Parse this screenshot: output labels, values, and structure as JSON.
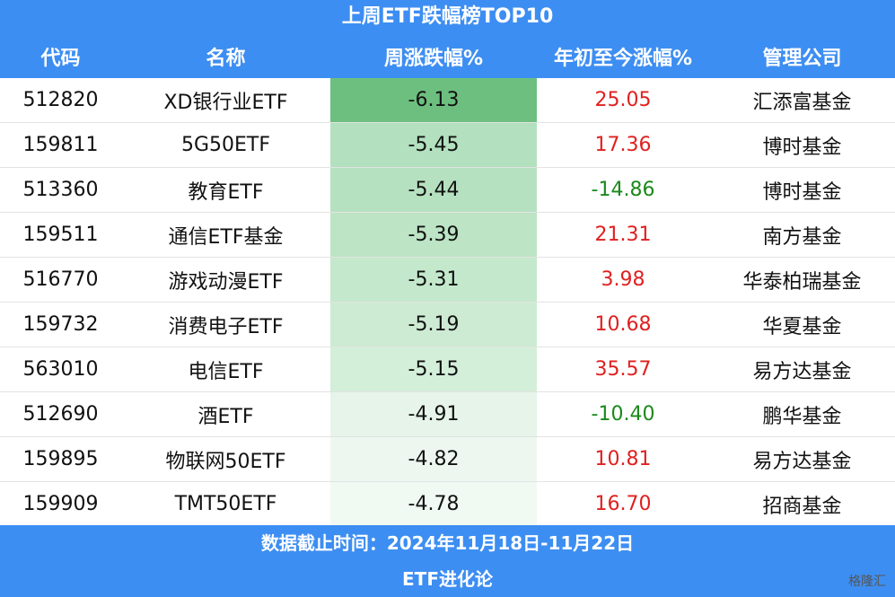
{
  "header": {
    "title": "上周ETF跌幅榜TOP10"
  },
  "table": {
    "columns": [
      "代码",
      "名称",
      "周涨跌幅%",
      "年初至今涨幅%",
      "管理公司"
    ],
    "rows": [
      [
        "512820",
        "XD银行业ETF",
        "-6.13",
        "25.05",
        "汇添富基金"
      ],
      [
        "159811",
        "5G50ETF",
        "-5.45",
        "17.36",
        "博时基金"
      ],
      [
        "513360",
        "教育ETF",
        "-5.44",
        "-14.86",
        "博时基金"
      ],
      [
        "159511",
        "通信ETF基金",
        "-5.39",
        "21.31",
        "南方基金"
      ],
      [
        "516770",
        "游戏动漫ETF",
        "-5.31",
        "3.98",
        "华泰柏瑞基金"
      ],
      [
        "159732",
        "消费电子ETF",
        "-5.19",
        "10.68",
        "华夏基金"
      ],
      [
        "563010",
        "电信ETF",
        "-5.15",
        "35.57",
        "易方达基金"
      ],
      [
        "512690",
        "酒ETF",
        "-4.91",
        "-10.40",
        "鹏华基金"
      ],
      [
        "159895",
        "物联网50ETF",
        "-4.82",
        "10.81",
        "易方达基金"
      ],
      [
        "159909",
        "TMT50ETF",
        "-4.78",
        "16.70",
        "招商基金"
      ]
    ]
  },
  "footer": {
    "date": "数据截止时间：2024年11月18日-11月22日",
    "source": "ETF进化论"
  },
  "watermark": "格隆汇"
}
